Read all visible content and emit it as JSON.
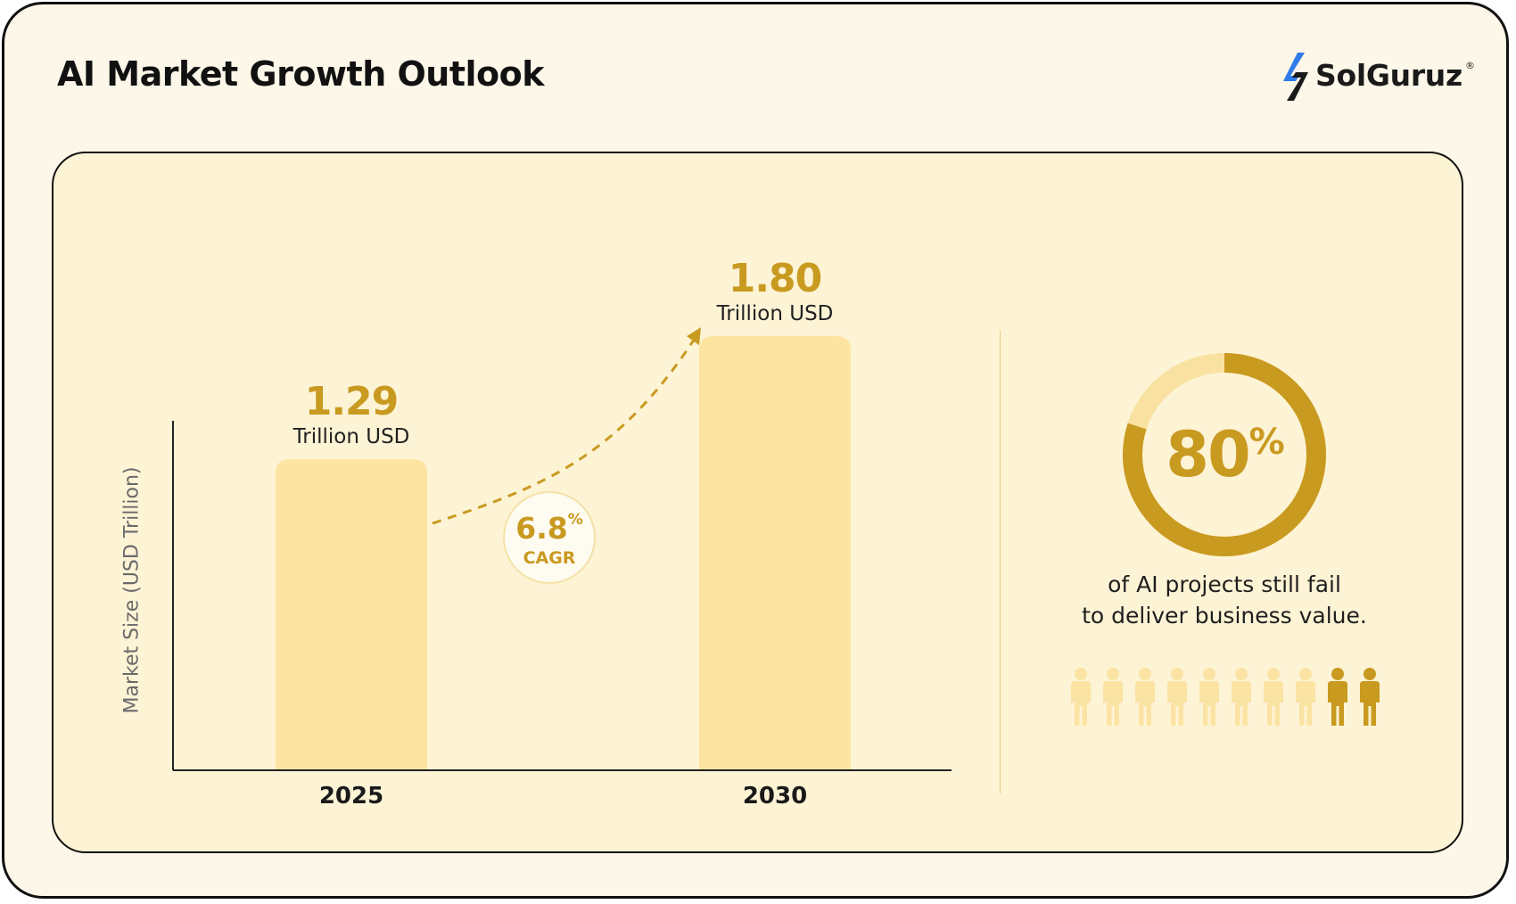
{
  "header": {
    "title": "AI Market Growth Outlook",
    "logo_text": "SolGuruz",
    "logo_reg": "®"
  },
  "colors": {
    "bar": "#fde5a1",
    "accent": "#c99a20",
    "accent_light": "#f9e2a1",
    "person_dim": "#fbe3a3",
    "person_highlight": "#c99a20"
  },
  "chart_data": {
    "type": "bar",
    "categories": [
      "2025",
      "2030"
    ],
    "values": [
      1.29,
      1.8
    ],
    "value_labels": [
      "1.29",
      "1.80"
    ],
    "value_unit": "Trillion USD",
    "ylabel": "Market Size (USD Trillion)",
    "ylim": [
      0,
      2.1
    ],
    "grid": false,
    "annotation": {
      "value": "6.8",
      "unit": "%",
      "label": "CAGR"
    }
  },
  "stat": {
    "percent": 80,
    "value": "80",
    "unit": "%",
    "line1": "of AI projects still fail",
    "line2": "to deliver business value.",
    "people_total": 10,
    "people_highlighted": 2
  }
}
